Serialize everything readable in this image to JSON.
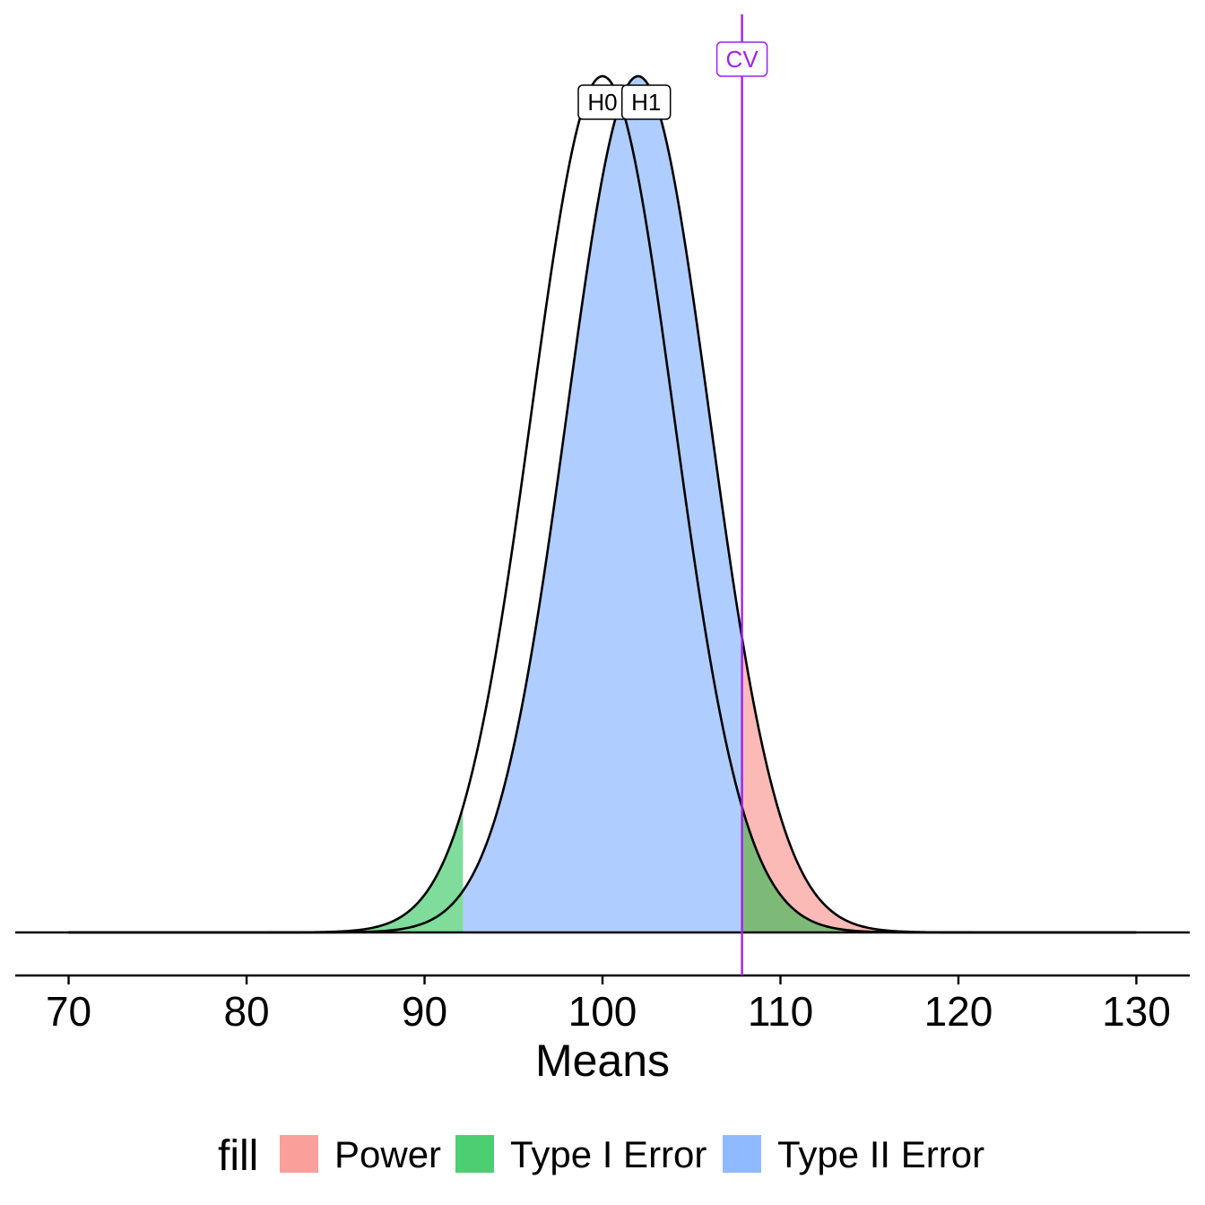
{
  "chart_data": {
    "type": "area",
    "xlabel": "Means",
    "xlim": [
      67,
      133
    ],
    "x_ticks": [
      70,
      80,
      90,
      100,
      110,
      120,
      130
    ],
    "x_tick_labels": [
      "70",
      "80",
      "90",
      "100",
      "110",
      "120",
      "130"
    ],
    "distributions": [
      {
        "label": "H0",
        "mean": 100,
        "sd": 4
      },
      {
        "label": "H1",
        "mean": 102,
        "sd": 4
      }
    ],
    "critical_values": {
      "lower": 92.16,
      "upper": 107.84
    },
    "cv_label": "CV",
    "regions": [
      {
        "name": "Type I Error",
        "dist": "H0",
        "from": 70,
        "to": 92.16
      },
      {
        "name": "Type I Error",
        "dist": "H0",
        "from": 107.84,
        "to": 130
      },
      {
        "name": "Type II Error",
        "dist": "H1",
        "from": 92.16,
        "to": 107.84
      },
      {
        "name": "Power",
        "dist": "H1",
        "from": 107.84,
        "to": 130
      }
    ],
    "legend": {
      "title": "fill",
      "position": "bottom",
      "entries": [
        {
          "name": "Power",
          "color": "#F8766D"
        },
        {
          "name": "Type I Error",
          "color": "#00BA38"
        },
        {
          "name": "Type II Error",
          "color": "#619CFF"
        }
      ]
    },
    "colors": {
      "cv_line": "#A020F0",
      "curve": "#000000"
    },
    "grid": false
  }
}
